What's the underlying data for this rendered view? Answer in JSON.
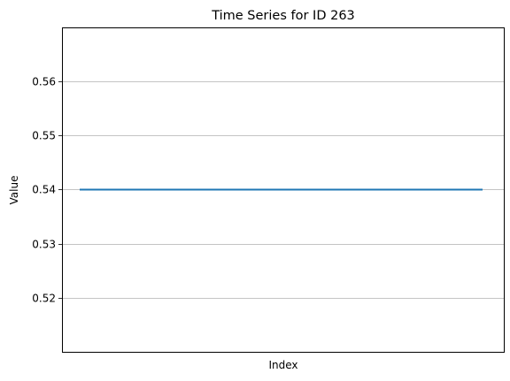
{
  "chart_data": {
    "type": "line",
    "title": "Time Series for ID 263",
    "xlabel": "Index",
    "ylabel": "Value",
    "x": [
      0,
      1
    ],
    "series": [
      {
        "values": [
          0.54,
          0.54
        ],
        "color": "#1f77b4"
      }
    ],
    "ylim": [
      0.5101,
      0.5699
    ],
    "yticks": [
      0.52,
      0.53,
      0.54,
      0.55,
      0.56
    ],
    "ytick_labels": [
      "0.52",
      "0.53",
      "0.54",
      "0.55",
      "0.56"
    ],
    "grid": "y-axis only",
    "x_ticks_shown": false
  }
}
